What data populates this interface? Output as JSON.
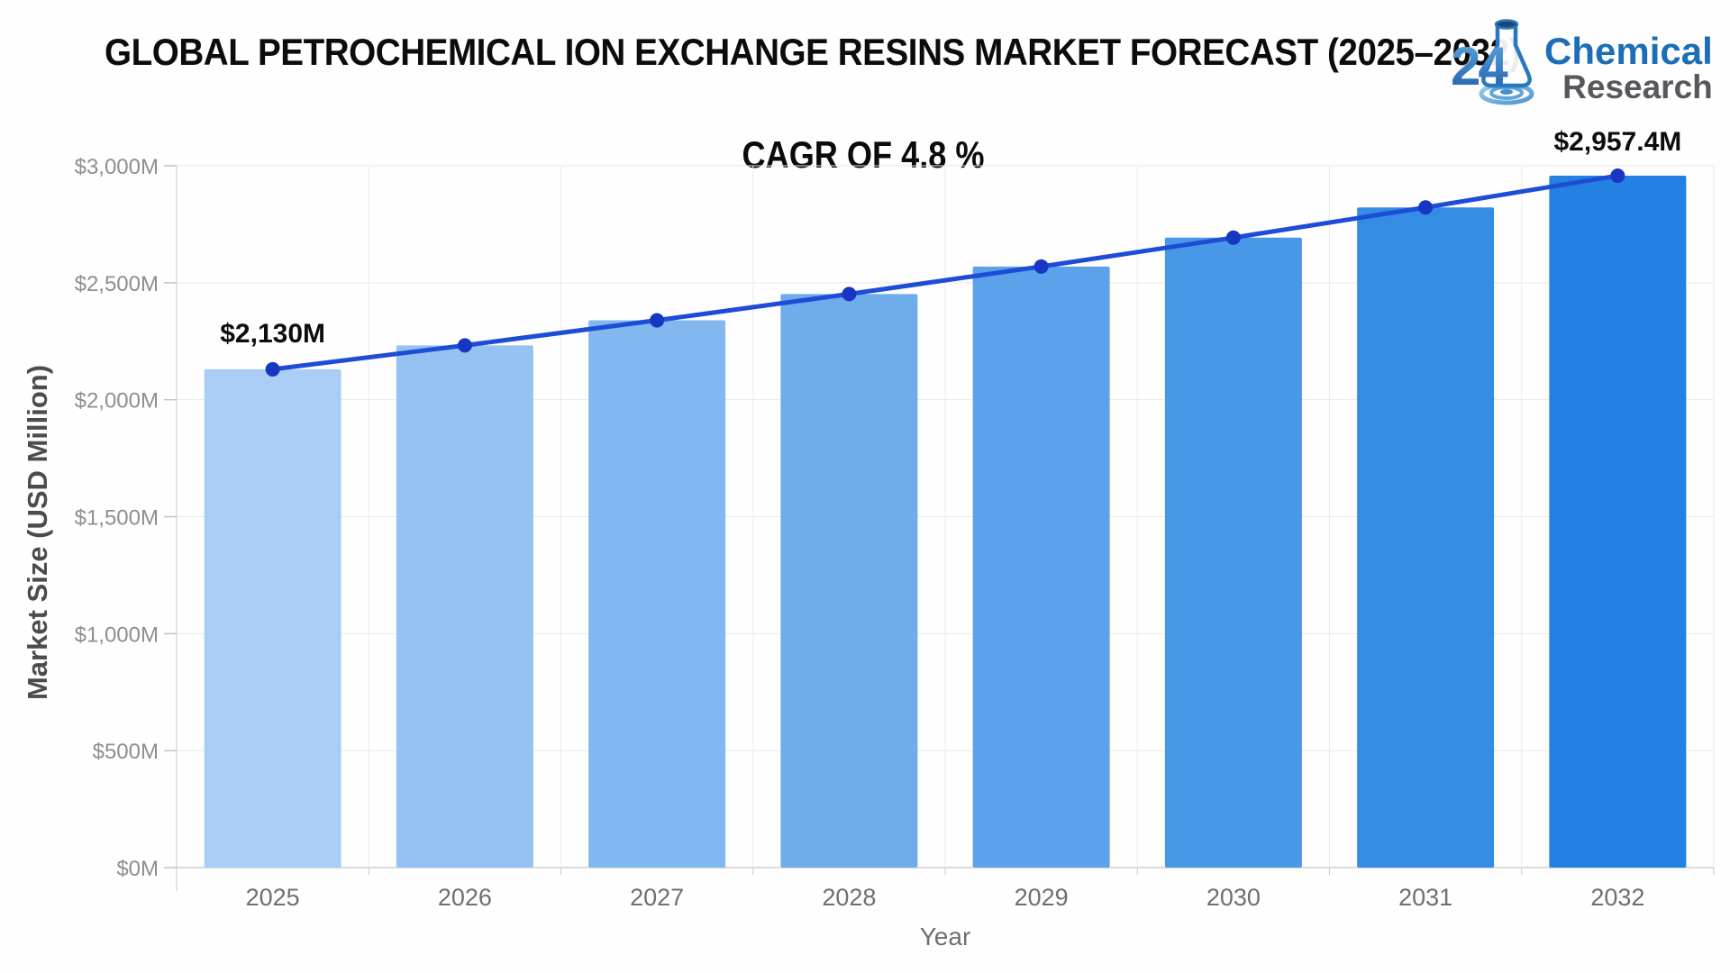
{
  "logo": {
    "number": "24",
    "name_top": "Chemical",
    "name_bottom": "Research",
    "colors": {
      "number_top": "#5fa8e0",
      "number_bottom": "#1e5ca8",
      "name_top": "#1c6fb6",
      "name_bottom": "#57585c",
      "flask_outline": "#2878c0"
    }
  },
  "chart_data": {
    "type": "bar",
    "title": "GLOBAL PETROCHEMICAL ION EXCHANGE RESINS MARKET FORECAST (2025–2032)",
    "annotation": "CAGR OF 4.8 %",
    "categories": [
      "2025",
      "2026",
      "2027",
      "2028",
      "2029",
      "2030",
      "2031",
      "2032"
    ],
    "values": [
      2130,
      2232.2,
      2339.4,
      2451.7,
      2569.3,
      2692.7,
      2821.9,
      2957.4
    ],
    "series_name": "Market Size",
    "xlabel": "Year",
    "ylabel": "Market Size (USD Million)",
    "ylim": [
      0,
      3000
    ],
    "ytick_step": 500,
    "ytick_labels": [
      "$0M",
      "$500M",
      "$1,000M",
      "$1,500M",
      "$2,000M",
      "$2,500M",
      "$3,000M"
    ],
    "point_labels": {
      "first": "$2,130M",
      "last": "$2,957.4M"
    },
    "grid": true,
    "legend": "none",
    "bar_colors": [
      "#A9CDF4",
      "#96C2F1",
      "#82B7EF",
      "#6FACEC",
      "#5CA2EA",
      "#4997E7",
      "#358CE5",
      "#2281E2"
    ],
    "line_color": "#1d4cd6",
    "marker_color": "#1737c2",
    "label_color": "#0d0d0d",
    "grid_color": "#e7e7e7",
    "axis_color": "#c9c9c9",
    "tick_text_color": "#8e8e8e",
    "category_text_color": "#6f6f6f",
    "axis_title_color": "#4c4c4c"
  }
}
